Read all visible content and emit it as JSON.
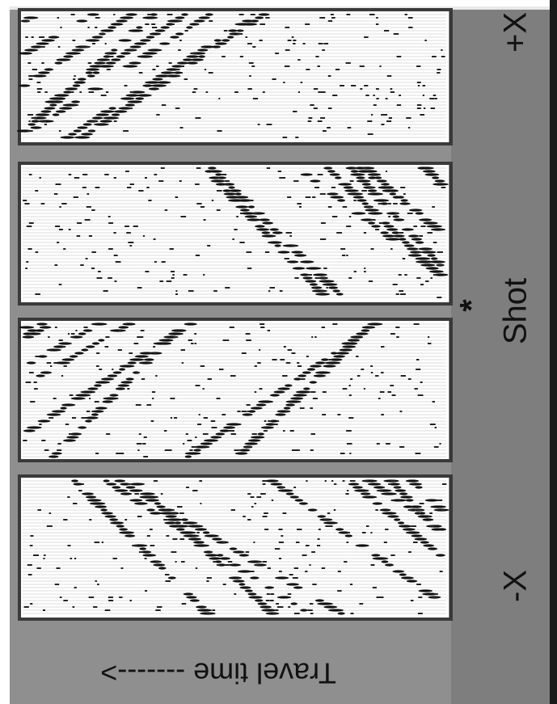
{
  "labels": {
    "travel_time": "Travel time ------->",
    "minus_x": "-X",
    "shot": "Shot",
    "plus_x": "+X",
    "star": "*"
  }
}
